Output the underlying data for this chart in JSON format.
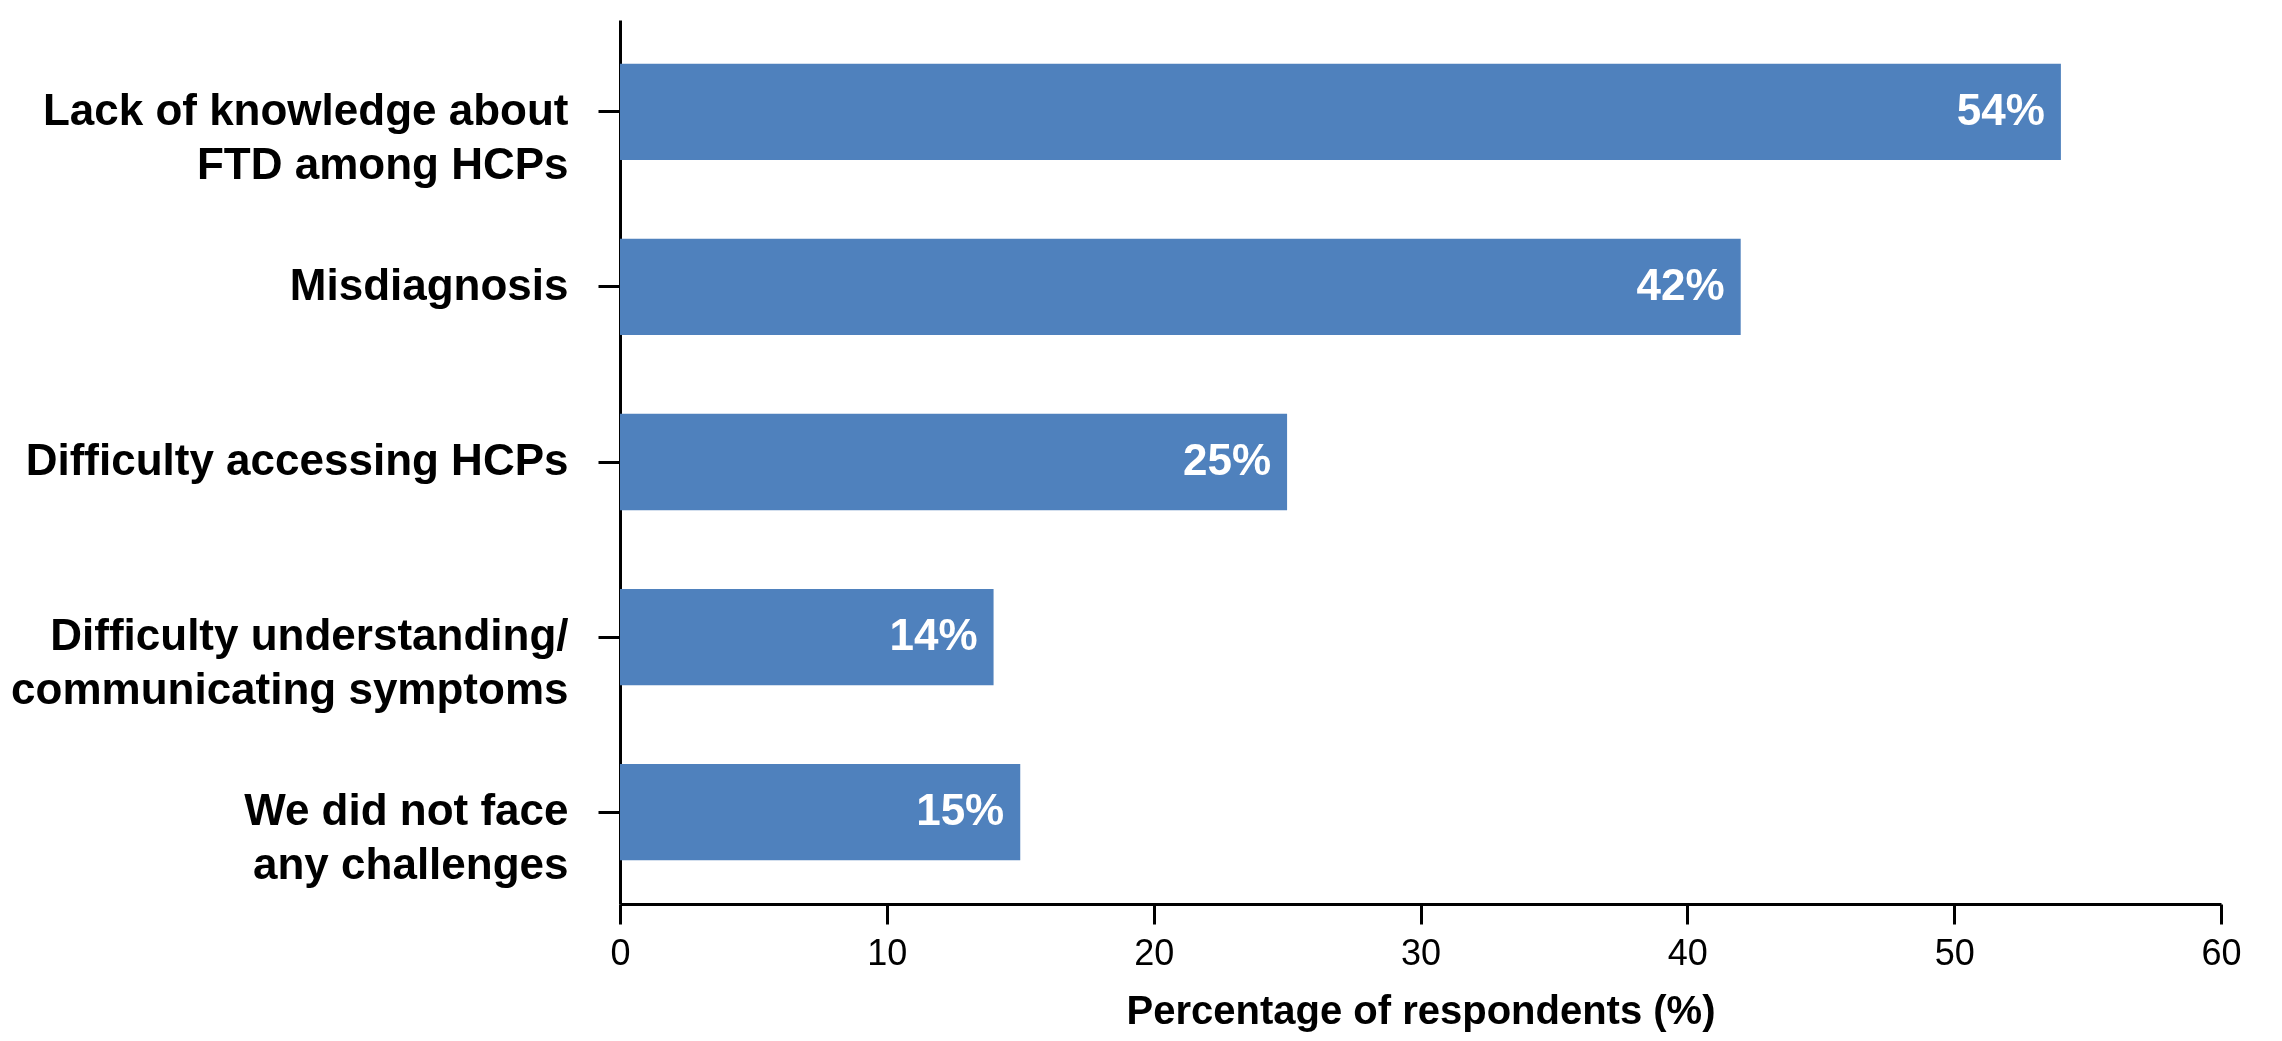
{
  "chart_data": {
    "type": "bar",
    "orientation": "horizontal",
    "xlabel": "Percentage of respondents (%)",
    "categories": [
      "Lack of knowledge about\nFTD among HCPs",
      "Misdiagnosis",
      "Difficulty accessing HCPs",
      "Difficulty understanding/\ncommunicating symptoms",
      "We did not face\nany challenges"
    ],
    "values": [
      54,
      42,
      25,
      14,
      15
    ],
    "value_labels": [
      "54%",
      "42%",
      "25%",
      "14%",
      "15%"
    ],
    "color": "#4f81bd",
    "xlim": [
      0,
      60
    ],
    "xticks": [
      0,
      10,
      20,
      30,
      40,
      50,
      60
    ],
    "grid": false
  }
}
